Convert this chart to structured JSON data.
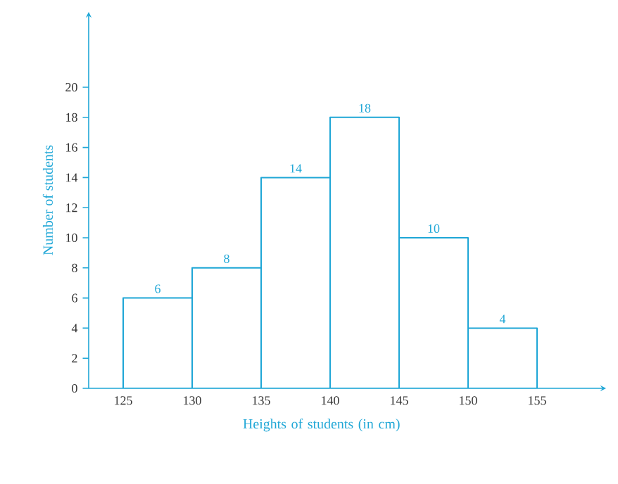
{
  "chart_data": {
    "type": "histogram",
    "xlabel": "Heights of students (in cm)",
    "ylabel": "Number of students",
    "bins": [
      125,
      130,
      135,
      140,
      145,
      150,
      155
    ],
    "values": [
      6,
      8,
      14,
      18,
      10,
      4
    ],
    "color": "#1ea6d6",
    "xlim": [
      122.5,
      160
    ],
    "ylim": [
      0,
      25
    ],
    "xticks": [
      125,
      130,
      135,
      140,
      145,
      150,
      155
    ],
    "yticks": [
      0,
      2,
      4,
      6,
      8,
      10,
      12,
      14,
      16,
      18,
      20
    ],
    "data_labels": true
  }
}
